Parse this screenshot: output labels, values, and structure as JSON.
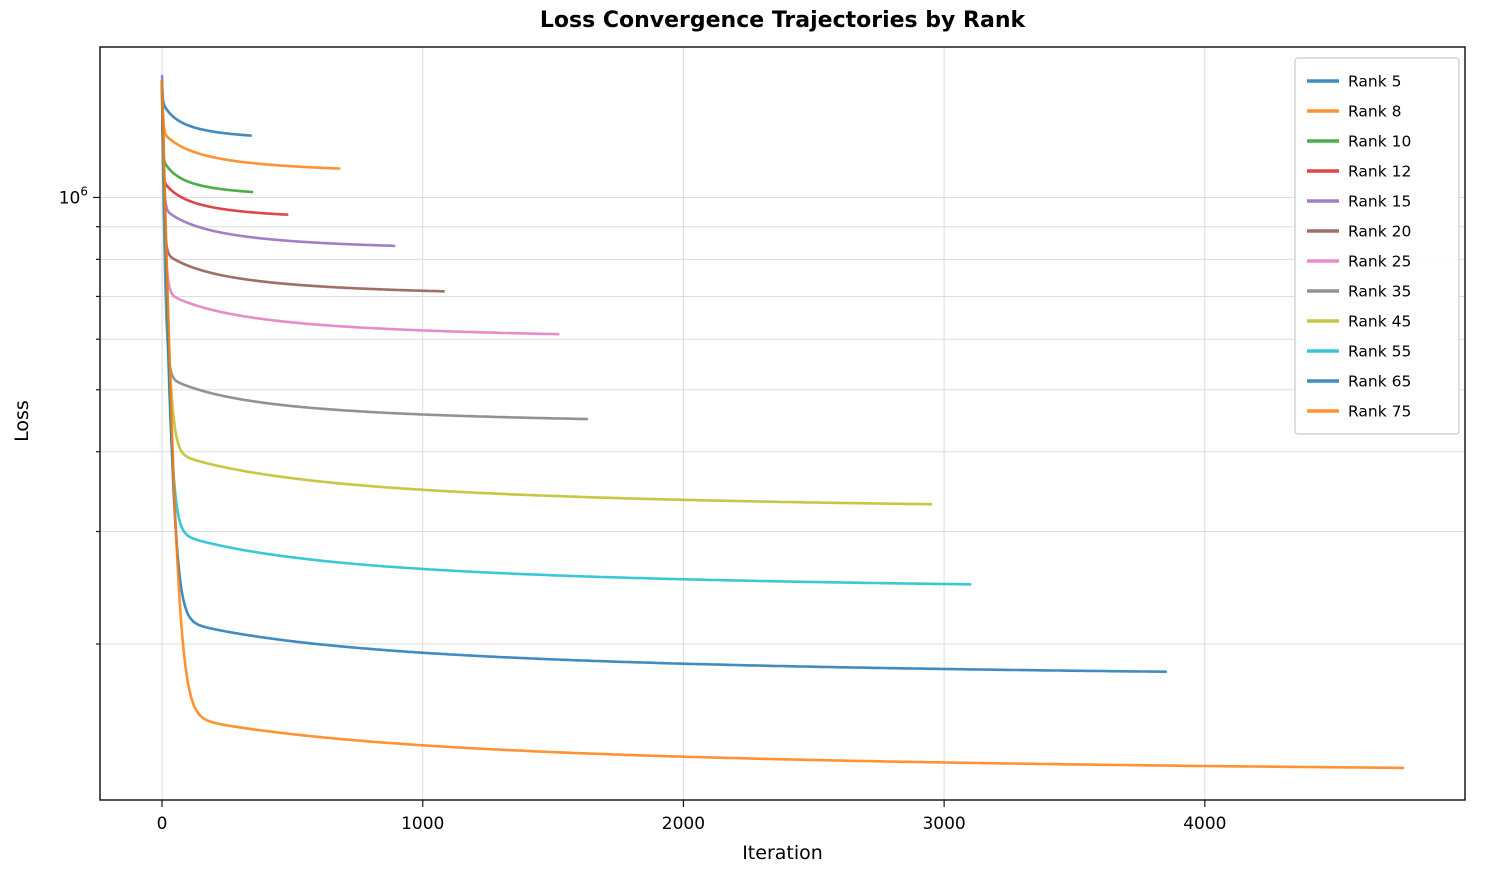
{
  "chart_data": {
    "type": "line",
    "title": "Loss Convergence Trajectories by Rank",
    "xlabel": "Iteration",
    "ylabel": "Loss",
    "y_scale": "log",
    "grid": true,
    "legend_position": "upper right",
    "xlim": [
      -238,
      4998
    ],
    "ylim": [
      114000,
      1720000
    ],
    "x_ticks": [
      0,
      1000,
      2000,
      3000,
      4000
    ],
    "x_tick_labels": [
      "0",
      "1000",
      "2000",
      "3000",
      "4000"
    ],
    "y_major_ticks": [
      1000000
    ],
    "y_major_tick_labels": [
      "10^6"
    ],
    "y_minor_ticks": [
      200000,
      300000,
      400000,
      500000,
      600000,
      700000,
      800000,
      900000
    ],
    "series": [
      {
        "name": "Rank 5",
        "color": "#1f77b4",
        "start_loss": 1520000,
        "final_loss": 1250000,
        "end_iteration": 340
      },
      {
        "name": "Rank 8",
        "color": "#ff7f0e",
        "start_loss": 1520000,
        "final_loss": 1110000,
        "end_iteration": 680
      },
      {
        "name": "Rank 10",
        "color": "#2ca02c",
        "start_loss": 1520000,
        "final_loss": 1020000,
        "end_iteration": 345
      },
      {
        "name": "Rank 12",
        "color": "#d62728",
        "start_loss": 1520000,
        "final_loss": 940000,
        "end_iteration": 480
      },
      {
        "name": "Rank 15",
        "color": "#9467bd",
        "start_loss": 1550000,
        "final_loss": 840000,
        "end_iteration": 890
      },
      {
        "name": "Rank 20",
        "color": "#8c564b",
        "start_loss": 1520000,
        "final_loss": 713000,
        "end_iteration": 1080
      },
      {
        "name": "Rank 25",
        "color": "#e377c2",
        "start_loss": 1520000,
        "final_loss": 611000,
        "end_iteration": 1520
      },
      {
        "name": "Rank 35",
        "color": "#7f7f7f",
        "start_loss": 1520000,
        "final_loss": 450000,
        "end_iteration": 1630
      },
      {
        "name": "Rank 45",
        "color": "#bcbd22",
        "start_loss": 1520000,
        "final_loss": 331000,
        "end_iteration": 2950
      },
      {
        "name": "Rank 55",
        "color": "#17becf",
        "start_loss": 1520000,
        "final_loss": 248000,
        "end_iteration": 3100
      },
      {
        "name": "Rank 65",
        "color": "#1f77b4",
        "start_loss": 1520000,
        "final_loss": 181000,
        "end_iteration": 3850
      },
      {
        "name": "Rank 75",
        "color": "#ff7f0e",
        "start_loss": 1520000,
        "final_loss": 128000,
        "end_iteration": 4760
      }
    ],
    "style": {
      "line_width": 2.6,
      "line_opacity": 0.85,
      "grid_color": "#dddddd",
      "spine_color": "#1a1a1a",
      "legend_border_color": "#cccccc",
      "background": "#ffffff"
    }
  }
}
